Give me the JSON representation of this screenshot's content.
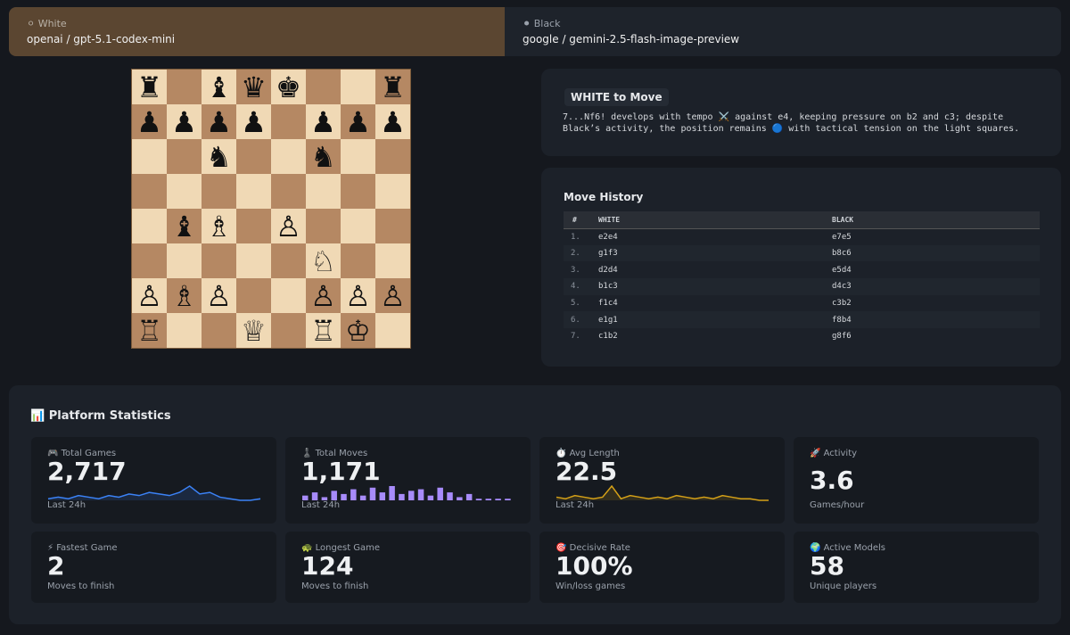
{
  "players": {
    "white": {
      "label": "⚪ White",
      "model": "openai / gpt-5.1-codex-mini"
    },
    "black": {
      "label": "⚫ Black",
      "model": "google / gemini-2.5-flash-image-preview"
    }
  },
  "board": {
    "rows": [
      [
        "♜",
        null,
        "♝",
        "♛",
        "♚",
        null,
        null,
        "♜"
      ],
      [
        "♟",
        "♟",
        "♟",
        "♟",
        null,
        "♟",
        "♟",
        "♟"
      ],
      [
        null,
        null,
        "♞",
        null,
        null,
        "♞",
        null,
        null
      ],
      [
        null,
        null,
        null,
        null,
        null,
        null,
        null,
        null
      ],
      [
        null,
        "♝",
        "♗",
        null,
        "♙",
        null,
        null,
        null
      ],
      [
        null,
        null,
        null,
        null,
        null,
        "♘",
        null,
        null
      ],
      [
        "♙",
        "♗",
        "♙",
        null,
        null,
        "♙",
        "♙",
        "♙"
      ],
      [
        "♖",
        null,
        null,
        "♕",
        null,
        "♖",
        "♔",
        null
      ]
    ]
  },
  "status": {
    "title": "WHITE to Move",
    "commentary": "7...Nf6! develops with tempo ⚔️ against e4, keeping pressure on b2 and c3; despite Black’s activity, the position remains 🔵 with tactical tension on the light squares."
  },
  "move_history": {
    "title": "Move History",
    "columns": [
      "#",
      "WHITE",
      "BLACK"
    ],
    "rows": [
      [
        "1.",
        "e2e4",
        "e7e5"
      ],
      [
        "2.",
        "g1f3",
        "b8c6"
      ],
      [
        "3.",
        "d2d4",
        "e5d4"
      ],
      [
        "4.",
        "b1c3",
        "d4c3"
      ],
      [
        "5.",
        "f1c4",
        "c3b2"
      ],
      [
        "6.",
        "e1g1",
        "f8b4"
      ],
      [
        "7.",
        "c1b2",
        "g8f6"
      ]
    ]
  },
  "stats": {
    "title": "📊 Platform Statistics",
    "cards": [
      {
        "label": "🎮 Total Games",
        "value": "2,717",
        "caption": "Last 24h",
        "trend": {
          "kind": "line",
          "color": "#3b82f6",
          "values": [
            8,
            9,
            8,
            10,
            9,
            8,
            10,
            9,
            11,
            10,
            12,
            11,
            10,
            12,
            16,
            11,
            12,
            9,
            8,
            7,
            7,
            8
          ]
        }
      },
      {
        "label": "♟️ Total Moves",
        "value": "1,171",
        "caption": "Last 24h",
        "trend": {
          "kind": "bar",
          "color": "#a78bfa",
          "values": [
            3,
            5,
            2,
            6,
            4,
            7,
            3,
            8,
            5,
            9,
            4,
            6,
            7,
            3,
            8,
            5,
            2,
            4,
            1,
            1,
            1,
            1
          ]
        }
      },
      {
        "label": "⏱️ Avg Length",
        "value": "22.5",
        "caption": "Last 24h",
        "trend": {
          "kind": "line",
          "color": "#d4a017",
          "values": [
            5,
            4,
            6,
            5,
            4,
            5,
            12,
            4,
            6,
            5,
            4,
            5,
            4,
            6,
            5,
            4,
            5,
            4,
            6,
            5,
            4,
            4,
            3,
            3
          ]
        }
      },
      {
        "label": "🚀 Activity",
        "value": "3.6",
        "caption": "Games/hour"
      },
      {
        "label": "⚡ Fastest Game",
        "value": "2",
        "caption": "Moves to finish"
      },
      {
        "label": "🐢 Longest Game",
        "value": "124",
        "caption": "Moves to finish"
      },
      {
        "label": "🎯 Decisive Rate",
        "value": "100%",
        "caption": "Win/loss games"
      },
      {
        "label": "🌍 Active Models",
        "value": "58",
        "caption": "Unique players"
      }
    ]
  }
}
